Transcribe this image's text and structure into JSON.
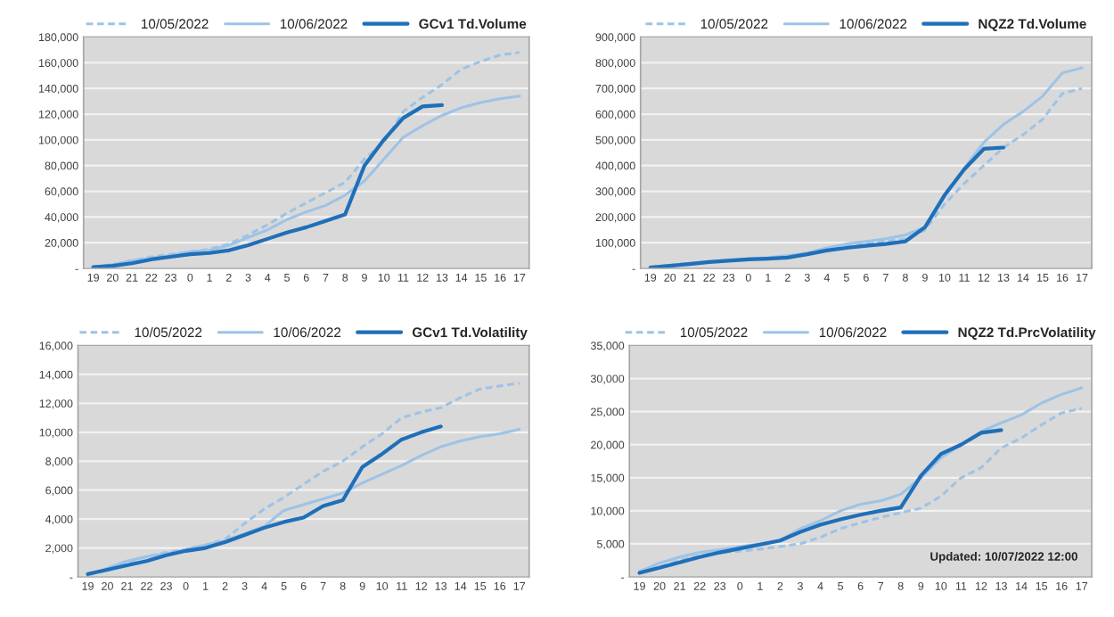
{
  "chart_data": [
    {
      "type": "line",
      "categories": [
        "19",
        "20",
        "21",
        "22",
        "23",
        "0",
        "1",
        "2",
        "3",
        "4",
        "5",
        "6",
        "7",
        "8",
        "9",
        "10",
        "11",
        "12",
        "13",
        "14",
        "15",
        "16",
        "17"
      ],
      "ylim": [
        0,
        180000
      ],
      "yticks": [
        {
          "value": 0,
          "label": "-"
        },
        {
          "value": 20000,
          "label": "20,000"
        },
        {
          "value": 40000,
          "label": "40,000"
        },
        {
          "value": 60000,
          "label": "60,000"
        },
        {
          "value": 80000,
          "label": "80,000"
        },
        {
          "value": 100000,
          "label": "100,000"
        },
        {
          "value": 120000,
          "label": "120,000"
        },
        {
          "value": 140000,
          "label": "140,000"
        },
        {
          "value": 160000,
          "label": "160,000"
        },
        {
          "value": 180000,
          "label": "180,000"
        }
      ],
      "grid": "y",
      "legend": "top",
      "marker": "none",
      "series": [
        {
          "name": "10/05/2022",
          "color": "#9dc3e6",
          "line_style": "dashed",
          "values": [
            1000,
            3000,
            6000,
            9000,
            11000,
            13000,
            15000,
            19000,
            26000,
            34000,
            43000,
            51000,
            59000,
            67000,
            85000,
            98000,
            122000,
            133000,
            143000,
            155000,
            161000,
            166000,
            168000
          ]
        },
        {
          "name": "10/06/2022",
          "color": "#9dc3e6",
          "line_style": "solid",
          "values": [
            1000,
            3000,
            6000,
            8000,
            10000,
            13000,
            14000,
            18000,
            24000,
            30000,
            38000,
            44000,
            49000,
            57000,
            68000,
            85000,
            102000,
            111000,
            119000,
            125000,
            129000,
            132000,
            134000
          ]
        },
        {
          "name": "GCv1 Td.Volume",
          "color": "#1f6fb9",
          "line_style": "solid",
          "values": [
            1000,
            2000,
            4000,
            7000,
            9000,
            11000,
            12000,
            14000,
            18000,
            23000,
            28000,
            32000,
            37000,
            42000,
            80000,
            100000,
            117000,
            126000,
            127000,
            null,
            null,
            null,
            null
          ]
        }
      ]
    },
    {
      "type": "line",
      "categories": [
        "19",
        "20",
        "21",
        "22",
        "23",
        "0",
        "1",
        "2",
        "3",
        "4",
        "5",
        "6",
        "7",
        "8",
        "9",
        "10",
        "11",
        "12",
        "13",
        "14",
        "15",
        "16",
        "17"
      ],
      "ylim": [
        0,
        900000
      ],
      "yticks": [
        {
          "value": 0,
          "label": "-"
        },
        {
          "value": 100000,
          "label": "100,000"
        },
        {
          "value": 200000,
          "label": "200,000"
        },
        {
          "value": 300000,
          "label": "300,000"
        },
        {
          "value": 400000,
          "label": "400,000"
        },
        {
          "value": 500000,
          "label": "500,000"
        },
        {
          "value": 600000,
          "label": "600,000"
        },
        {
          "value": 700000,
          "label": "700,000"
        },
        {
          "value": 800000,
          "label": "800,000"
        },
        {
          "value": 900000,
          "label": "900,000"
        }
      ],
      "grid": "y",
      "legend": "top",
      "marker": "none",
      "series": [
        {
          "name": "10/05/2022",
          "color": "#9dc3e6",
          "line_style": "dashed",
          "values": [
            5000,
            12000,
            18000,
            24000,
            30000,
            35000,
            40000,
            45000,
            55000,
            70000,
            85000,
            95000,
            105000,
            115000,
            150000,
            250000,
            330000,
            400000,
            470000,
            520000,
            580000,
            680000,
            700000
          ]
        },
        {
          "name": "10/06/2022",
          "color": "#9dc3e6",
          "line_style": "solid",
          "values": [
            5000,
            12000,
            20000,
            27000,
            33000,
            38000,
            42000,
            50000,
            60000,
            80000,
            95000,
            105000,
            115000,
            130000,
            160000,
            280000,
            390000,
            490000,
            560000,
            610000,
            670000,
            760000,
            780000
          ]
        },
        {
          "name": "NQZ2 Td.Volume",
          "color": "#1f6fb9",
          "line_style": "solid",
          "values": [
            3000,
            10000,
            17000,
            25000,
            30000,
            35000,
            38000,
            42000,
            55000,
            70000,
            80000,
            88000,
            95000,
            105000,
            160000,
            285000,
            385000,
            465000,
            470000,
            null,
            null,
            null,
            null
          ]
        }
      ]
    },
    {
      "type": "line",
      "categories": [
        "19",
        "20",
        "21",
        "22",
        "23",
        "0",
        "1",
        "2",
        "3",
        "4",
        "5",
        "6",
        "7",
        "8",
        "9",
        "10",
        "11",
        "12",
        "13",
        "14",
        "15",
        "16",
        "17"
      ],
      "ylim": [
        0,
        16000
      ],
      "yticks": [
        {
          "value": 0,
          "label": "-"
        },
        {
          "value": 2000,
          "label": "2,000"
        },
        {
          "value": 4000,
          "label": "4,000"
        },
        {
          "value": 6000,
          "label": "6,000"
        },
        {
          "value": 8000,
          "label": "8,000"
        },
        {
          "value": 10000,
          "label": "10,000"
        },
        {
          "value": 12000,
          "label": "12,000"
        },
        {
          "value": 14000,
          "label": "14,000"
        },
        {
          "value": 16000,
          "label": "16,000"
        }
      ],
      "grid": "y",
      "legend": "top",
      "marker": "none",
      "series": [
        {
          "name": "10/05/2022",
          "color": "#9dc3e6",
          "line_style": "dashed",
          "values": [
            100,
            500,
            1000,
            1400,
            1700,
            1900,
            2200,
            2600,
            3700,
            4700,
            5500,
            6400,
            7300,
            8000,
            9000,
            9900,
            11000,
            11400,
            11700,
            12400,
            13000,
            13200,
            13400
          ]
        },
        {
          "name": "10/06/2022",
          "color": "#9dc3e6",
          "line_style": "solid",
          "values": [
            100,
            600,
            1100,
            1400,
            1600,
            1900,
            2200,
            2500,
            3000,
            3500,
            4600,
            5000,
            5400,
            5800,
            6500,
            7100,
            7700,
            8400,
            9000,
            9400,
            9700,
            9900,
            10200
          ]
        },
        {
          "name": "GCv1 Td.Volatility",
          "color": "#1f6fb9",
          "line_style": "solid",
          "values": [
            200,
            500,
            800,
            1100,
            1500,
            1800,
            2000,
            2400,
            2900,
            3400,
            3800,
            4100,
            4900,
            5300,
            7600,
            8500,
            9500,
            10000,
            10400,
            null,
            null,
            null,
            null
          ]
        }
      ]
    },
    {
      "type": "line",
      "categories": [
        "19",
        "20",
        "21",
        "22",
        "23",
        "0",
        "1",
        "2",
        "3",
        "4",
        "5",
        "6",
        "7",
        "8",
        "9",
        "10",
        "11",
        "12",
        "13",
        "14",
        "15",
        "16",
        "17"
      ],
      "ylim": [
        0,
        35000
      ],
      "yticks": [
        {
          "value": 0,
          "label": "-"
        },
        {
          "value": 5000,
          "label": "5,000"
        },
        {
          "value": 10000,
          "label": "10,000"
        },
        {
          "value": 15000,
          "label": "15,000"
        },
        {
          "value": 20000,
          "label": "20,000"
        },
        {
          "value": 25000,
          "label": "25,000"
        },
        {
          "value": 30000,
          "label": "30,000"
        },
        {
          "value": 35000,
          "label": "35,000"
        }
      ],
      "grid": "y",
      "legend": "top",
      "marker": "none",
      "annotations": [
        "Updated: 10/07/2022 12:00"
      ],
      "series": [
        {
          "name": "10/05/2022",
          "color": "#9dc3e6",
          "line_style": "dashed",
          "values": [
            800,
            1500,
            2500,
            3200,
            3700,
            3900,
            4200,
            4600,
            5000,
            6000,
            7300,
            8200,
            9000,
            9700,
            10400,
            12200,
            15000,
            16500,
            19500,
            21000,
            23000,
            24800,
            25500
          ]
        },
        {
          "name": "10/06/2022",
          "color": "#9dc3e6",
          "line_style": "solid",
          "values": [
            800,
            2100,
            3000,
            3700,
            4100,
            4600,
            5000,
            5500,
            7300,
            8500,
            10000,
            11000,
            11500,
            12500,
            15000,
            18000,
            20000,
            22000,
            23300,
            24500,
            26300,
            27600,
            28600
          ]
        },
        {
          "name": "NQZ2 Td.PrcVolatility",
          "color": "#1f6fb9",
          "line_style": "solid",
          "values": [
            600,
            1400,
            2200,
            3000,
            3700,
            4300,
            4900,
            5500,
            6800,
            7900,
            8700,
            9400,
            10000,
            10500,
            15300,
            18600,
            20000,
            21800,
            22200,
            null,
            null,
            null,
            null
          ]
        }
      ]
    }
  ]
}
